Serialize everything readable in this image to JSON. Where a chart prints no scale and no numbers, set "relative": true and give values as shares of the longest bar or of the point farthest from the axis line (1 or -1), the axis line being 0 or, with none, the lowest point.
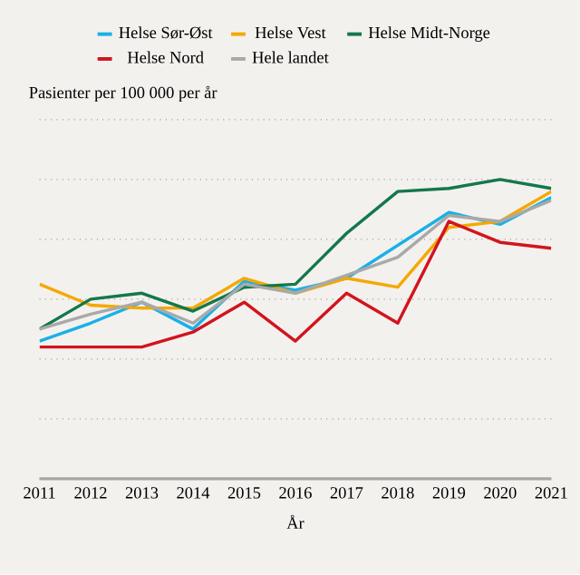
{
  "chart_data": {
    "type": "line",
    "xlabel": "År",
    "ylabel": "Pasienter per 100 000 per år",
    "relative": true,
    "grid": "y",
    "legend": "top",
    "marker": "none",
    "line_style": "solid",
    "categories": [
      "2011",
      "2012",
      "2013",
      "2014",
      "2015",
      "2016",
      "2017",
      "2018",
      "2019",
      "2020",
      "2021"
    ],
    "series": [
      {
        "name": "Helse Sør-Øst",
        "color": "#1ab0e8",
        "values": [
          0.46,
          0.52,
          0.59,
          0.5,
          0.66,
          0.63,
          0.67,
          0.78,
          0.89,
          0.85,
          0.94
        ]
      },
      {
        "name": "Helse Vest",
        "color": "#f5a800",
        "values": [
          0.65,
          0.58,
          0.57,
          0.57,
          0.67,
          0.62,
          0.67,
          0.64,
          0.84,
          0.86,
          0.96
        ]
      },
      {
        "name": "Helse Midt-Norge",
        "color": "#13784a",
        "values": [
          0.5,
          0.6,
          0.62,
          0.56,
          0.64,
          0.65,
          0.82,
          0.96,
          0.97,
          1,
          0.97
        ]
      },
      {
        "name": "Helse Nord",
        "color": "#d2141e",
        "values": [
          0.44,
          0.44,
          0.44,
          0.49,
          0.59,
          0.46,
          0.62,
          0.52,
          0.86,
          0.79,
          0.77
        ]
      },
      {
        "name": "Hele landet",
        "color": "#a9a9a9",
        "values": [
          0.5,
          0.55,
          0.59,
          0.52,
          0.65,
          0.62,
          0.68,
          0.74,
          0.88,
          0.86,
          0.93
        ]
      }
    ]
  }
}
